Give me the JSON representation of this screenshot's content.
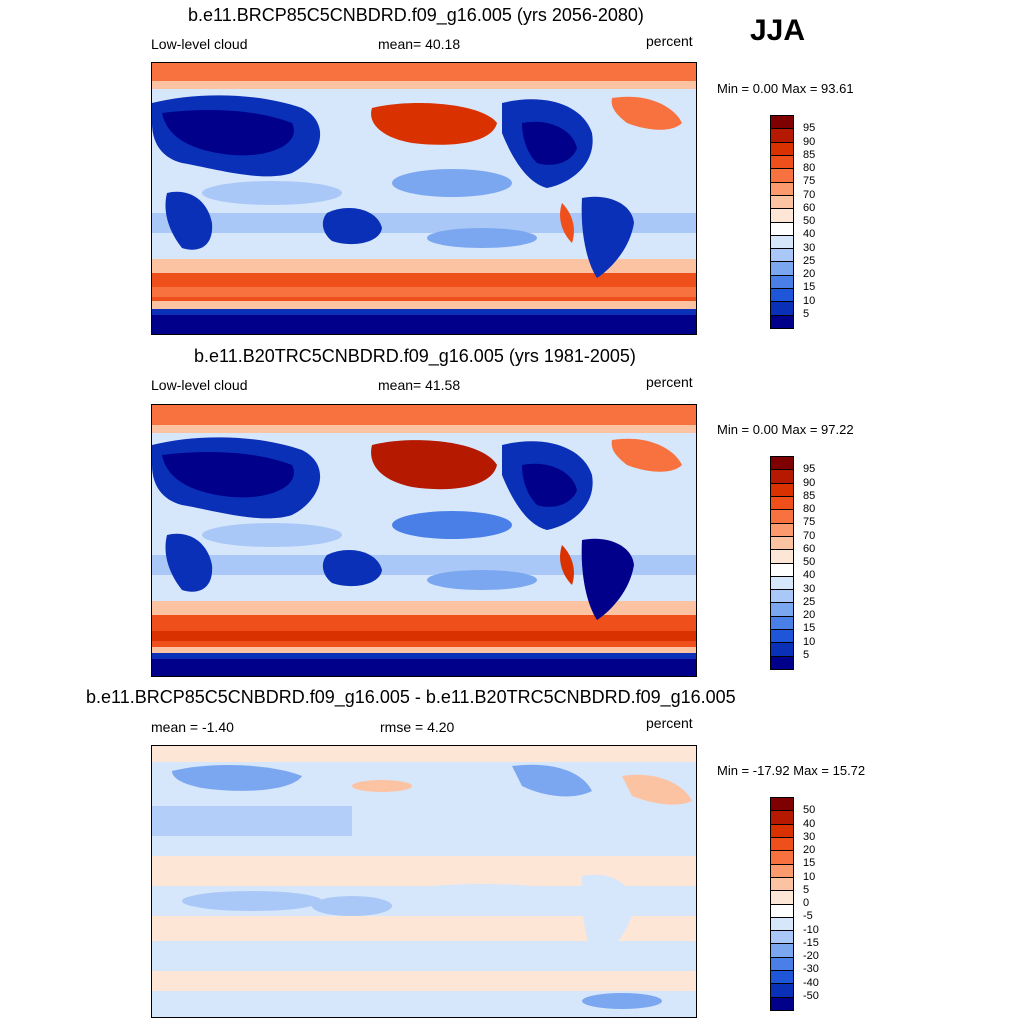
{
  "season": "JJA",
  "panels": [
    {
      "title": "b.e11.BRCP85C5CNBDRD.f09_g16.005 (yrs 2056-2080)",
      "left_label": "Low-level cloud",
      "center_label": "mean=  40.18",
      "right_label": "percent",
      "minmax": "Min =   0.00 Max =  93.61"
    },
    {
      "title": "b.e11.B20TRC5CNBDRD.f09_g16.005 (yrs 1981-2005)",
      "left_label": "Low-level cloud",
      "center_label": "mean=  41.58",
      "right_label": "percent",
      "minmax": "Min =   0.00 Max =  97.22"
    },
    {
      "title": "b.e11.BRCP85C5CNBDRD.f09_g16.005 - b.e11.B20TRC5CNBDRD.f09_g16.005",
      "left_label": "mean =  -1.40",
      "center_label": "rmse =   4.20",
      "right_label": "percent",
      "minmax": "Min = -17.92 Max =  15.72"
    }
  ],
  "colorbar_abs": {
    "labels": [
      "95",
      "90",
      "85",
      "80",
      "75",
      "70",
      "60",
      "50",
      "40",
      "30",
      "25",
      "20",
      "15",
      "10",
      "5"
    ],
    "colors": [
      "#7f0000",
      "#b51a00",
      "#d93200",
      "#ef4f1a",
      "#f7723e",
      "#fb9a6c",
      "#fcc3a3",
      "#fde6d6",
      "#ffffff",
      "#d6e6fb",
      "#aac8f7",
      "#7ba7f0",
      "#4a7fe8",
      "#1f55d8",
      "#0a30b8",
      "#00008b"
    ]
  },
  "colorbar_diff": {
    "labels": [
      "50",
      "40",
      "30",
      "20",
      "15",
      "10",
      "5",
      "0",
      "-5",
      "-10",
      "-15",
      "-20",
      "-30",
      "-40",
      "-50"
    ],
    "colors": [
      "#7f0000",
      "#b51a00",
      "#d93200",
      "#ef4f1a",
      "#f7723e",
      "#fb9a6c",
      "#fcc3a3",
      "#fde6d6",
      "#ffffff",
      "#d6e6fb",
      "#aac8f7",
      "#7ba7f0",
      "#4a7fe8",
      "#1f55d8",
      "#0a30b8",
      "#00008b"
    ]
  }
}
